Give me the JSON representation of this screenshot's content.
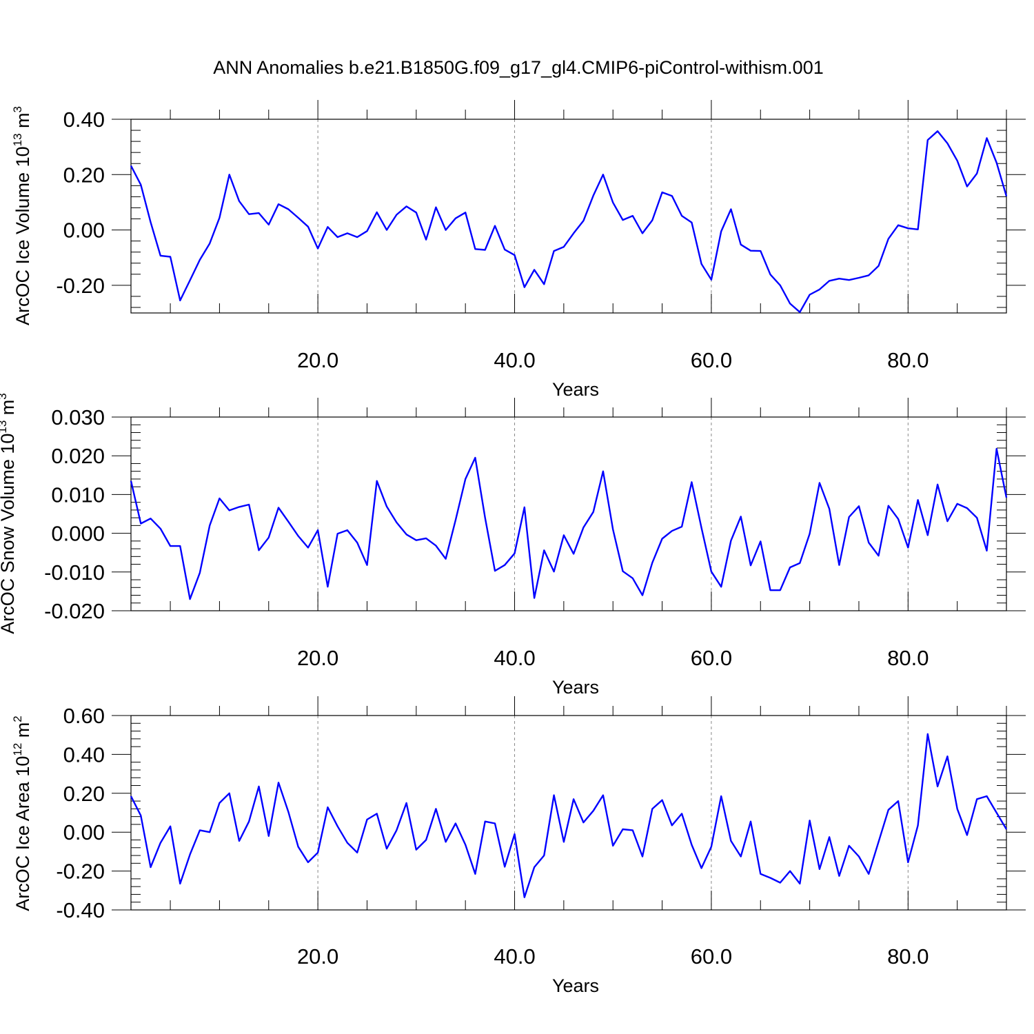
{
  "title": "ANN Anomalies b.e21.B1850G.f09_g17_gl4.CMIP6-piControl-withism.001",
  "colors": {
    "line": "#0000ff",
    "axes": "#000000",
    "gridline": "#888888"
  },
  "chart_data": [
    {
      "type": "line",
      "ylabel": {
        "base": "ArcOC Ice Volume 10",
        "exp": "13",
        "unit": " m",
        "unit_exp": "3"
      },
      "xlabel": "Years",
      "xlim": [
        1,
        90
      ],
      "ylim": [
        -0.3,
        0.4
      ],
      "xticks": [
        "20.0",
        "40.0",
        "60.0",
        "80.0"
      ],
      "yticks": [
        "0.40",
        "0.20",
        "0.00",
        "-0.20"
      ],
      "ytick_values": [
        0.4,
        0.2,
        0.0,
        -0.2
      ],
      "grid": "vertical dashed at major x ticks",
      "x_start": 1,
      "values": [
        0.232,
        0.163,
        0.028,
        -0.093,
        -0.097,
        -0.255,
        -0.182,
        -0.108,
        -0.049,
        0.044,
        0.2,
        0.104,
        0.057,
        0.061,
        0.019,
        0.093,
        0.075,
        0.044,
        0.012,
        -0.067,
        0.011,
        -0.026,
        -0.012,
        -0.026,
        -0.004,
        0.064,
        0.0,
        0.055,
        0.085,
        0.063,
        -0.035,
        0.082,
        0.0,
        0.042,
        0.063,
        -0.069,
        -0.072,
        0.015,
        -0.071,
        -0.091,
        -0.207,
        -0.144,
        -0.196,
        -0.076,
        -0.061,
        -0.012,
        0.033,
        0.124,
        0.2,
        0.099,
        0.036,
        0.051,
        -0.012,
        0.035,
        0.136,
        0.123,
        0.051,
        0.027,
        -0.123,
        -0.18,
        -0.005,
        0.075,
        -0.053,
        -0.075,
        -0.076,
        -0.161,
        -0.2,
        -0.266,
        -0.297,
        -0.234,
        -0.215,
        -0.184,
        -0.176,
        -0.181,
        -0.173,
        -0.164,
        -0.13,
        -0.032,
        0.017,
        0.006,
        0.002,
        0.325,
        0.357,
        0.313,
        0.25,
        0.157,
        0.204,
        0.332,
        0.243,
        0.122
      ]
    },
    {
      "type": "line",
      "ylabel": {
        "base": "ArcOC Snow Volume 10",
        "exp": "13",
        "unit": " m",
        "unit_exp": "3"
      },
      "xlabel": "Years",
      "xlim": [
        1,
        90
      ],
      "ylim": [
        -0.02,
        0.03
      ],
      "xticks": [
        "20.0",
        "40.0",
        "60.0",
        "80.0"
      ],
      "yticks": [
        "0.030",
        "0.020",
        "0.010",
        "0.000",
        "-0.010",
        "-0.020"
      ],
      "ytick_values": [
        0.03,
        0.02,
        0.01,
        0.0,
        -0.01,
        -0.02
      ],
      "grid": "vertical dashed at major x ticks",
      "x_start": 1,
      "values": [
        0.0135,
        0.0025,
        0.0038,
        0.0012,
        -0.0033,
        -0.0033,
        -0.017,
        -0.0102,
        0.002,
        0.009,
        0.0059,
        0.0068,
        0.0074,
        -0.0044,
        -0.0011,
        0.0066,
        0.003,
        -0.0007,
        -0.0037,
        0.0008,
        -0.0138,
        -0.0001,
        0.0008,
        -0.0024,
        -0.0082,
        0.0135,
        0.0069,
        0.0028,
        -0.0003,
        -0.0018,
        -0.0013,
        -0.0032,
        -0.0066,
        0.0034,
        0.014,
        0.0195,
        0.004,
        -0.0097,
        -0.0082,
        -0.0052,
        0.0067,
        -0.0167,
        -0.0044,
        -0.0099,
        -0.0005,
        -0.0053,
        0.0015,
        0.0055,
        0.016,
        0.001,
        -0.0098,
        -0.0116,
        -0.016,
        -0.0076,
        -0.0014,
        0.0006,
        0.0017,
        0.0132,
        0.0014,
        -0.0099,
        -0.0138,
        -0.0019,
        0.0043,
        -0.0083,
        -0.0021,
        -0.0147,
        -0.0147,
        -0.0088,
        -0.0077,
        -0.0001,
        0.013,
        0.0063,
        -0.0082,
        0.0042,
        0.007,
        -0.0024,
        -0.0058,
        0.0071,
        0.0037,
        -0.0037,
        0.0086,
        -0.0005,
        0.0126,
        0.0031,
        0.0076,
        0.0065,
        0.004,
        -0.0045,
        0.0218,
        0.0092
      ]
    },
    {
      "type": "line",
      "ylabel": {
        "base": "ArcOC Ice Area 10",
        "exp": "12",
        "unit": " m",
        "unit_exp": "2"
      },
      "xlabel": "Years",
      "xlim": [
        1,
        90
      ],
      "ylim": [
        -0.4,
        0.6
      ],
      "xticks": [
        "20.0",
        "40.0",
        "60.0",
        "80.0"
      ],
      "yticks": [
        "0.60",
        "0.40",
        "0.20",
        "0.00",
        "-0.20",
        "-0.40"
      ],
      "ytick_values": [
        0.6,
        0.4,
        0.2,
        0.0,
        -0.2,
        -0.4
      ],
      "grid": "vertical dashed at major x ticks",
      "x_start": 1,
      "values": [
        0.185,
        0.085,
        -0.18,
        -0.055,
        0.03,
        -0.265,
        -0.115,
        0.01,
        0.0,
        0.15,
        0.2,
        -0.045,
        0.055,
        0.235,
        -0.02,
        0.255,
        0.105,
        -0.075,
        -0.155,
        -0.105,
        0.128,
        0.03,
        -0.055,
        -0.105,
        0.065,
        0.095,
        -0.085,
        0.01,
        0.15,
        -0.09,
        -0.04,
        0.12,
        -0.05,
        0.045,
        -0.065,
        -0.215,
        0.055,
        0.045,
        -0.178,
        -0.01,
        -0.335,
        -0.18,
        -0.12,
        0.19,
        -0.05,
        0.17,
        0.05,
        0.11,
        0.19,
        -0.07,
        0.015,
        0.01,
        -0.125,
        0.12,
        0.165,
        0.035,
        0.095,
        -0.065,
        -0.185,
        -0.075,
        0.185,
        -0.045,
        -0.125,
        0.055,
        -0.215,
        -0.235,
        -0.26,
        -0.2,
        -0.265,
        0.06,
        -0.19,
        -0.025,
        -0.225,
        -0.07,
        -0.125,
        -0.215,
        -0.05,
        0.115,
        0.16,
        -0.155,
        0.035,
        0.505,
        0.235,
        0.39,
        0.12,
        -0.015,
        0.17,
        0.185,
        0.1,
        0.015
      ]
    }
  ]
}
